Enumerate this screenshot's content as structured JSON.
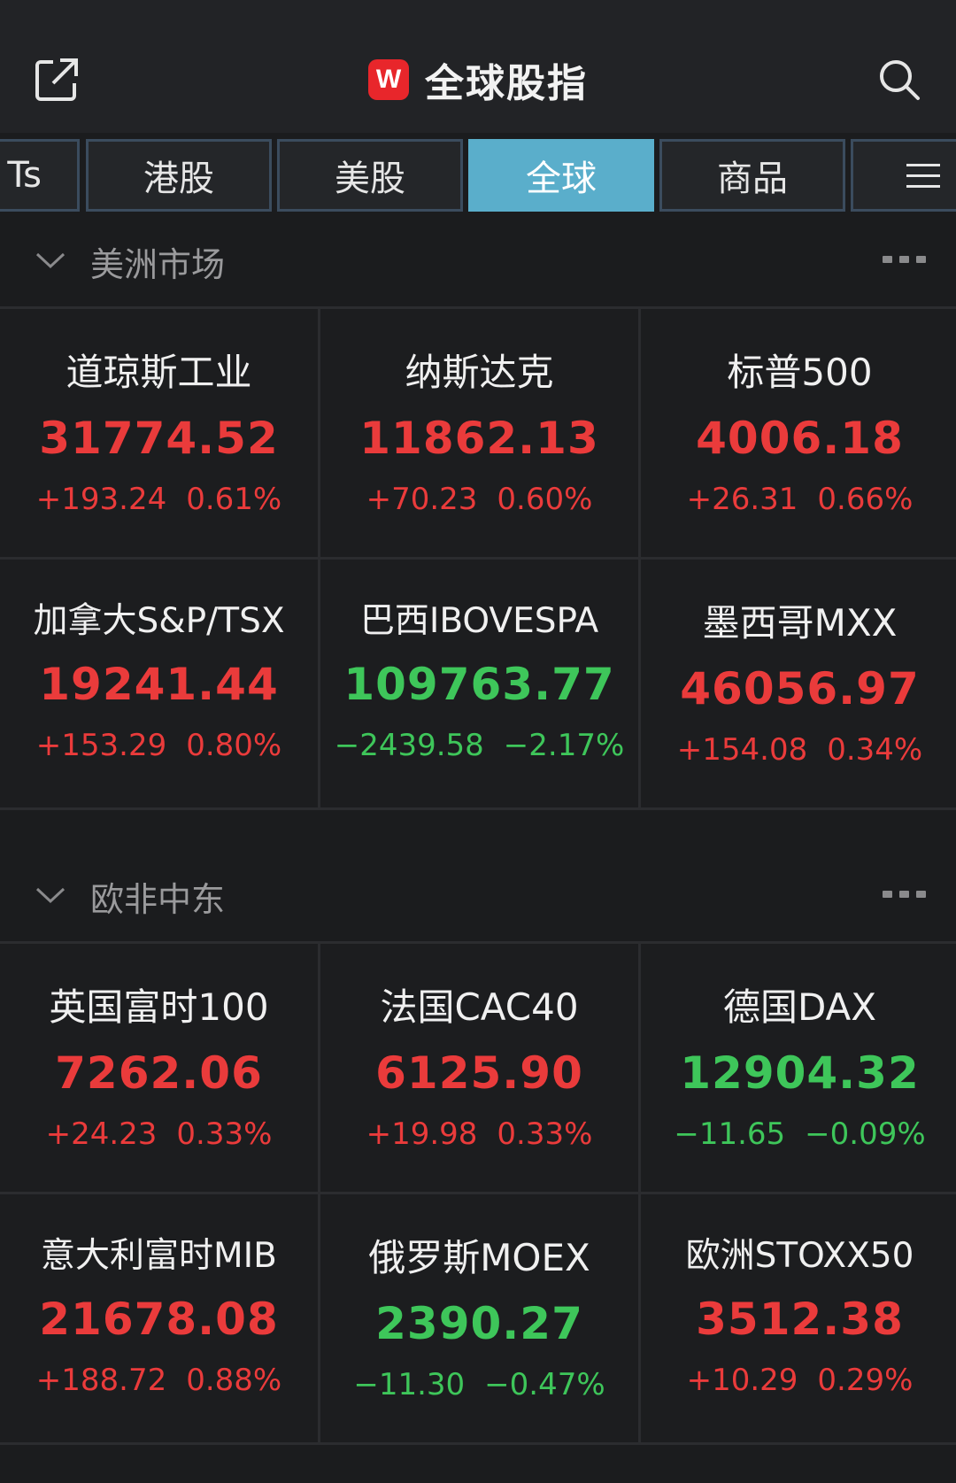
{
  "header": {
    "title": "全球股指",
    "logo_text": "W",
    "left_icon": "share-external-icon",
    "right_icon": "search-icon"
  },
  "tabs": [
    {
      "label": "Ts",
      "active": false
    },
    {
      "label": "港股",
      "active": false
    },
    {
      "label": "美股",
      "active": false
    },
    {
      "label": "全球",
      "active": true
    },
    {
      "label": "商品",
      "active": false
    },
    {
      "label": "",
      "icon": "menu-icon",
      "active": false
    }
  ],
  "colors": {
    "up": "#ea3b3b",
    "down": "#3ec65a",
    "active_tab": "#5aaecb",
    "logo": "#e8262b"
  },
  "sections": [
    {
      "title": "美洲市场",
      "items": [
        {
          "name": "道琼斯工业",
          "price": "31774.52",
          "change": "+193.24",
          "pct": "0.61%",
          "dir": "up"
        },
        {
          "name": "纳斯达克",
          "price": "11862.13",
          "change": "+70.23",
          "pct": "0.60%",
          "dir": "up"
        },
        {
          "name": "标普500",
          "price": "4006.18",
          "change": "+26.31",
          "pct": "0.66%",
          "dir": "up"
        },
        {
          "name": "加拿大S&P/TSX",
          "price": "19241.44",
          "change": "+153.29",
          "pct": "0.80%",
          "dir": "up"
        },
        {
          "name": "巴西IBOVESPA",
          "price": "109763.77",
          "change": "−2439.58",
          "pct": "−2.17%",
          "dir": "down"
        },
        {
          "name": "墨西哥MXX",
          "price": "46056.97",
          "change": "+154.08",
          "pct": "0.34%",
          "dir": "up"
        }
      ]
    },
    {
      "title": "欧非中东",
      "items": [
        {
          "name": "英国富时100",
          "price": "7262.06",
          "change": "+24.23",
          "pct": "0.33%",
          "dir": "up"
        },
        {
          "name": "法国CAC40",
          "price": "6125.90",
          "change": "+19.98",
          "pct": "0.33%",
          "dir": "up"
        },
        {
          "name": "德国DAX",
          "price": "12904.32",
          "change": "−11.65",
          "pct": "−0.09%",
          "dir": "down"
        },
        {
          "name": "意大利富时MIB",
          "price": "21678.08",
          "change": "+188.72",
          "pct": "0.88%",
          "dir": "up"
        },
        {
          "name": "俄罗斯MOEX",
          "price": "2390.27",
          "change": "−11.30",
          "pct": "−0.47%",
          "dir": "down"
        },
        {
          "name": "欧洲STOXX50",
          "price": "3512.38",
          "change": "+10.29",
          "pct": "0.29%",
          "dir": "up"
        }
      ]
    }
  ]
}
